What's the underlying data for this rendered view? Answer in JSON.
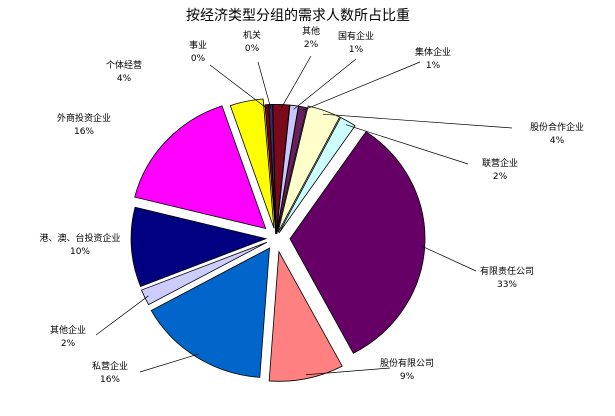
{
  "chart_data": {
    "type": "pie",
    "title": "按经济类型分组的需求人数所占比重",
    "slices": [
      {
        "name": "机关",
        "value": 0,
        "label": "0%",
        "color": "#2E2E6E"
      },
      {
        "name": "其他",
        "value": 2,
        "label": "2%",
        "color": "#7A0A1A"
      },
      {
        "name": "国有企业",
        "value": 1,
        "label": "1%",
        "color": "#C8C8FF"
      },
      {
        "name": "集体企业",
        "value": 1,
        "label": "1%",
        "color": "#6B1E5C"
      },
      {
        "name": "股份合作企业",
        "value": 4,
        "label": "4%",
        "color": "#FFFFCC"
      },
      {
        "name": "联营企业",
        "value": 2,
        "label": "2%",
        "color": "#CCFFFF"
      },
      {
        "name": "有限责任公司",
        "value": 33,
        "label": "33%",
        "color": "#660066"
      },
      {
        "name": "股份有限公司",
        "value": 9,
        "label": "9%",
        "color": "#FF8080"
      },
      {
        "name": "私营企业",
        "value": 16,
        "label": "16%",
        "color": "#0066CC"
      },
      {
        "name": "其他企业",
        "value": 2,
        "label": "2%",
        "color": "#CCCCFF"
      },
      {
        "name": "港、澳、台投资企业",
        "value": 10,
        "label": "10%",
        "color": "#000080"
      },
      {
        "name": "外商投资企业",
        "value": 16,
        "label": "16%",
        "color": "#FF00FF"
      },
      {
        "name": "个体经营",
        "value": 4,
        "label": "4%",
        "color": "#FFFF00"
      },
      {
        "name": "事业",
        "value": 0,
        "label": "0%",
        "color": "#800000"
      }
    ]
  }
}
